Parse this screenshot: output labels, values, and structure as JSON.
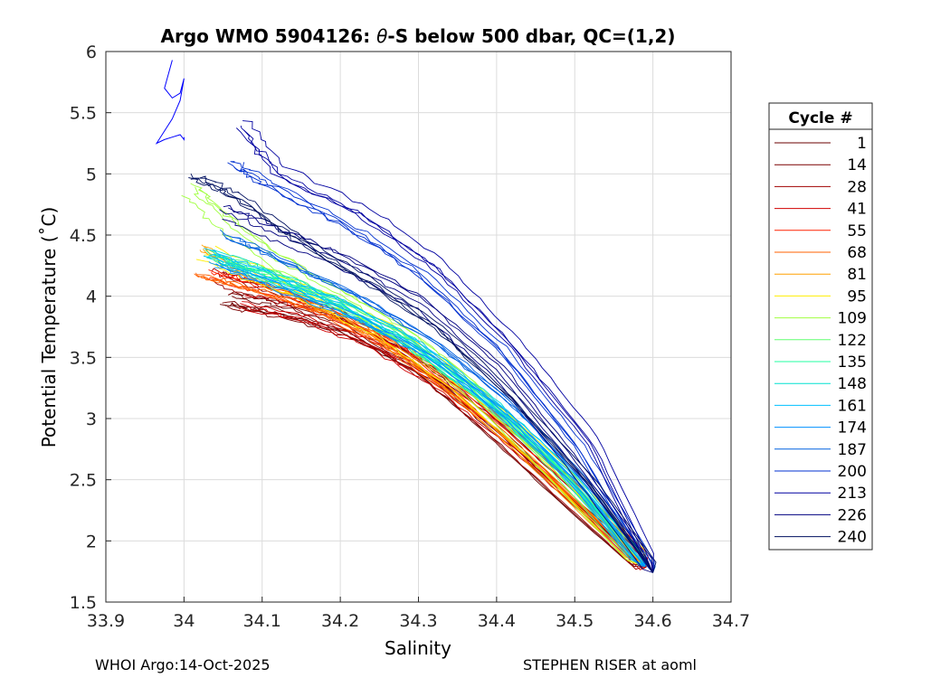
{
  "chart_data": {
    "type": "line",
    "title_prefix": "Argo WMO 5904126: ",
    "title_theta": "θ",
    "title_suffix": "-S below 500 dbar,  QC=(1,2)",
    "xlabel": "Salinity",
    "ylabel": "Potential Temperature (˚C)",
    "xlim": [
      33.9,
      34.7
    ],
    "ylim": [
      1.5,
      6
    ],
    "xticks": [
      "33.9",
      "34",
      "34.1",
      "34.2",
      "34.3",
      "34.4",
      "34.5",
      "34.6",
      "34.7"
    ],
    "yticks": [
      "1.5",
      "2",
      "2.5",
      "3",
      "3.5",
      "4",
      "4.5",
      "5",
      "5.5",
      "6"
    ],
    "grid": true,
    "legend_title": "Cycle #",
    "legend_position": "outside-right",
    "series": [
      {
        "name": "1",
        "color": "#6b0000",
        "values": [
          [
            34.06,
            3.98
          ],
          [
            34.12,
            3.92
          ],
          [
            34.2,
            3.78
          ],
          [
            34.3,
            3.45
          ],
          [
            34.4,
            2.9
          ],
          [
            34.5,
            2.3
          ],
          [
            34.59,
            1.8
          ]
        ]
      },
      {
        "name": "14",
        "color": "#7a0000",
        "values": [
          [
            34.05,
            3.96
          ],
          [
            34.12,
            3.89
          ],
          [
            34.21,
            3.72
          ],
          [
            34.31,
            3.38
          ],
          [
            34.41,
            2.84
          ],
          [
            34.51,
            2.26
          ],
          [
            34.59,
            1.78
          ]
        ]
      },
      {
        "name": "28",
        "color": "#a00000",
        "values": [
          [
            34.04,
            4.18
          ],
          [
            34.1,
            4.05
          ],
          [
            34.18,
            3.88
          ],
          [
            34.26,
            3.62
          ],
          [
            34.35,
            3.2
          ],
          [
            34.45,
            2.62
          ],
          [
            34.55,
            2.04
          ],
          [
            34.59,
            1.8
          ]
        ]
      },
      {
        "name": "41",
        "color": "#d00000",
        "values": [
          [
            34.07,
            3.96
          ],
          [
            34.15,
            3.85
          ],
          [
            34.23,
            3.66
          ],
          [
            34.32,
            3.32
          ],
          [
            34.42,
            2.8
          ],
          [
            34.52,
            2.22
          ],
          [
            34.59,
            1.78
          ]
        ]
      },
      {
        "name": "55",
        "color": "#ff2000",
        "values": [
          [
            34.03,
            4.15
          ],
          [
            34.1,
            4.02
          ],
          [
            34.19,
            3.82
          ],
          [
            34.28,
            3.5
          ],
          [
            34.38,
            3.02
          ],
          [
            34.48,
            2.48
          ],
          [
            34.59,
            1.79
          ]
        ]
      },
      {
        "name": "68",
        "color": "#ff6000",
        "values": [
          [
            34.02,
            4.16
          ],
          [
            34.09,
            4.05
          ],
          [
            34.18,
            3.86
          ],
          [
            34.27,
            3.56
          ],
          [
            34.37,
            3.08
          ],
          [
            34.47,
            2.52
          ],
          [
            34.59,
            1.8
          ]
        ]
      },
      {
        "name": "81",
        "color": "#ffa000",
        "values": [
          [
            34.03,
            4.4
          ],
          [
            34.08,
            4.2
          ],
          [
            34.16,
            3.98
          ],
          [
            34.25,
            3.7
          ],
          [
            34.35,
            3.24
          ],
          [
            34.45,
            2.66
          ],
          [
            34.59,
            1.8
          ]
        ]
      },
      {
        "name": "95",
        "color": "#ffee00",
        "values": [
          [
            34.03,
            4.35
          ],
          [
            34.1,
            4.15
          ],
          [
            34.18,
            3.95
          ],
          [
            34.27,
            3.66
          ],
          [
            34.37,
            3.18
          ],
          [
            34.47,
            2.6
          ],
          [
            34.59,
            1.79
          ]
        ]
      },
      {
        "name": "109",
        "color": "#a0ff40",
        "values": [
          [
            34.01,
            4.88
          ],
          [
            34.05,
            4.62
          ],
          [
            34.12,
            4.3
          ],
          [
            34.2,
            4.0
          ],
          [
            34.28,
            3.7
          ],
          [
            34.36,
            3.3
          ],
          [
            34.45,
            2.74
          ],
          [
            34.59,
            1.8
          ]
        ]
      },
      {
        "name": "122",
        "color": "#60ff70",
        "values": [
          [
            34.05,
            4.3
          ],
          [
            34.12,
            4.18
          ],
          [
            34.2,
            3.96
          ],
          [
            34.28,
            3.68
          ],
          [
            34.37,
            3.26
          ],
          [
            34.47,
            2.66
          ],
          [
            34.59,
            1.79
          ]
        ]
      },
      {
        "name": "135",
        "color": "#20ffa0",
        "values": [
          [
            34.04,
            4.32
          ],
          [
            34.11,
            4.15
          ],
          [
            34.19,
            3.94
          ],
          [
            34.28,
            3.64
          ],
          [
            34.38,
            3.18
          ],
          [
            34.48,
            2.6
          ],
          [
            34.59,
            1.8
          ]
        ]
      },
      {
        "name": "148",
        "color": "#00e0d0",
        "values": [
          [
            34.03,
            4.36
          ],
          [
            34.1,
            4.2
          ],
          [
            34.19,
            3.96
          ],
          [
            34.28,
            3.66
          ],
          [
            34.38,
            3.2
          ],
          [
            34.48,
            2.62
          ],
          [
            34.59,
            1.8
          ]
        ]
      },
      {
        "name": "161",
        "color": "#00c0ff",
        "values": [
          [
            34.03,
            4.34
          ],
          [
            34.1,
            4.18
          ],
          [
            34.2,
            3.94
          ],
          [
            34.3,
            3.6
          ],
          [
            34.4,
            3.1
          ],
          [
            34.5,
            2.5
          ],
          [
            34.59,
            1.79
          ]
        ]
      },
      {
        "name": "174",
        "color": "#0090ff",
        "values": [
          [
            34.04,
            4.3
          ],
          [
            34.12,
            4.1
          ],
          [
            34.22,
            3.86
          ],
          [
            34.32,
            3.52
          ],
          [
            34.42,
            3.02
          ],
          [
            34.51,
            2.44
          ],
          [
            34.59,
            1.79
          ]
        ]
      },
      {
        "name": "187",
        "color": "#0060e0",
        "values": [
          [
            34.05,
            4.5
          ],
          [
            34.12,
            4.3
          ],
          [
            34.22,
            4.0
          ],
          [
            34.32,
            3.62
          ],
          [
            34.42,
            3.1
          ],
          [
            34.52,
            2.42
          ],
          [
            34.6,
            1.74
          ]
        ]
      },
      {
        "name": "200",
        "color": "#0030d0",
        "values": [
          [
            34.06,
            5.1
          ],
          [
            34.1,
            4.95
          ],
          [
            34.2,
            4.62
          ],
          [
            34.3,
            4.2
          ],
          [
            34.4,
            3.6
          ],
          [
            34.5,
            2.8
          ],
          [
            34.6,
            1.74
          ]
        ]
      },
      {
        "name": "213",
        "color": "#0000a0",
        "values": [
          [
            34.07,
            5.4
          ],
          [
            34.12,
            5.0
          ],
          [
            34.22,
            4.7
          ],
          [
            34.32,
            4.25
          ],
          [
            34.42,
            3.6
          ],
          [
            34.52,
            2.8
          ],
          [
            34.6,
            1.74
          ]
        ]
      },
      {
        "name": "226",
        "color": "#000080",
        "values": [
          [
            34.05,
            4.7
          ],
          [
            34.12,
            4.5
          ],
          [
            34.2,
            4.3
          ],
          [
            34.3,
            3.95
          ],
          [
            34.4,
            3.4
          ],
          [
            34.5,
            2.6
          ],
          [
            34.6,
            1.74
          ]
        ]
      },
      {
        "name": "240",
        "color": "#001060",
        "values": [
          [
            34.01,
            4.96
          ],
          [
            34.06,
            4.82
          ],
          [
            34.14,
            4.46
          ],
          [
            34.23,
            4.12
          ],
          [
            34.32,
            3.74
          ],
          [
            34.42,
            3.14
          ],
          [
            34.52,
            2.44
          ],
          [
            34.6,
            1.74
          ]
        ]
      }
    ],
    "extra_trace": {
      "color": "#0000ff",
      "values": [
        [
          33.985,
          5.93
        ],
        [
          33.975,
          5.7
        ],
        [
          33.985,
          5.62
        ],
        [
          33.995,
          5.66
        ],
        [
          34.0,
          5.78
        ],
        [
          33.995,
          5.6
        ],
        [
          33.985,
          5.45
        ],
        [
          33.965,
          5.25
        ],
        [
          33.975,
          5.28
        ],
        [
          33.985,
          5.3
        ],
        [
          33.995,
          5.32
        ],
        [
          34.0,
          5.28
        ],
        [
          34.0,
          5.3
        ]
      ]
    }
  },
  "footer": {
    "left": "WHOI Argo:14-Oct-2025",
    "right": "STEPHEN RISER at aoml"
  }
}
